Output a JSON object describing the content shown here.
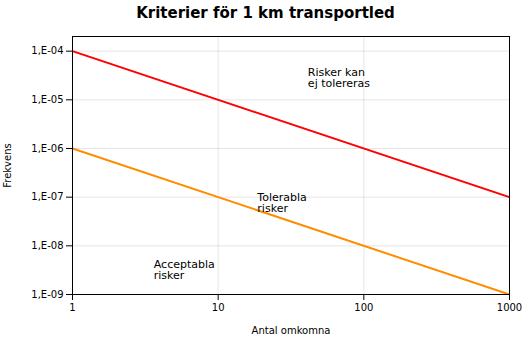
{
  "chart_data": {
    "type": "line",
    "title": "Kriterier för 1 km transportled",
    "xlabel": "Antal omkomna",
    "ylabel": "Frekvens",
    "log": true,
    "grid": true,
    "xlim": [
      1,
      1000
    ],
    "ylim": [
      1e-09,
      0.0002
    ],
    "xticks": [
      1,
      10,
      100,
      1000
    ],
    "yticks": [
      {
        "value": 1e-09,
        "label": "1,E-09"
      },
      {
        "value": 1e-08,
        "label": "1,E-08"
      },
      {
        "value": 1e-07,
        "label": "1,E-07"
      },
      {
        "value": 1e-06,
        "label": "1,E-06"
      },
      {
        "value": 1e-05,
        "label": "1,E-05"
      },
      {
        "value": 0.0001,
        "label": "1,E-04"
      }
    ],
    "x": [
      1,
      1000
    ],
    "series": [
      {
        "color": "#FF0000",
        "values": [
          0.0001,
          1e-07
        ]
      },
      {
        "color": "#FF8C00",
        "values": [
          1e-06,
          1e-09
        ]
      }
    ],
    "annotations": [
      {
        "text": "Risker kan\nej tolereras",
        "x": 40,
        "y": 4.5e-05
      },
      {
        "text": "Tolerabla\nrisker",
        "x": 18,
        "y": 1.2e-07
      },
      {
        "text": "Acceptabla\nrisker",
        "x": 3.5,
        "y": 5e-09
      }
    ]
  }
}
